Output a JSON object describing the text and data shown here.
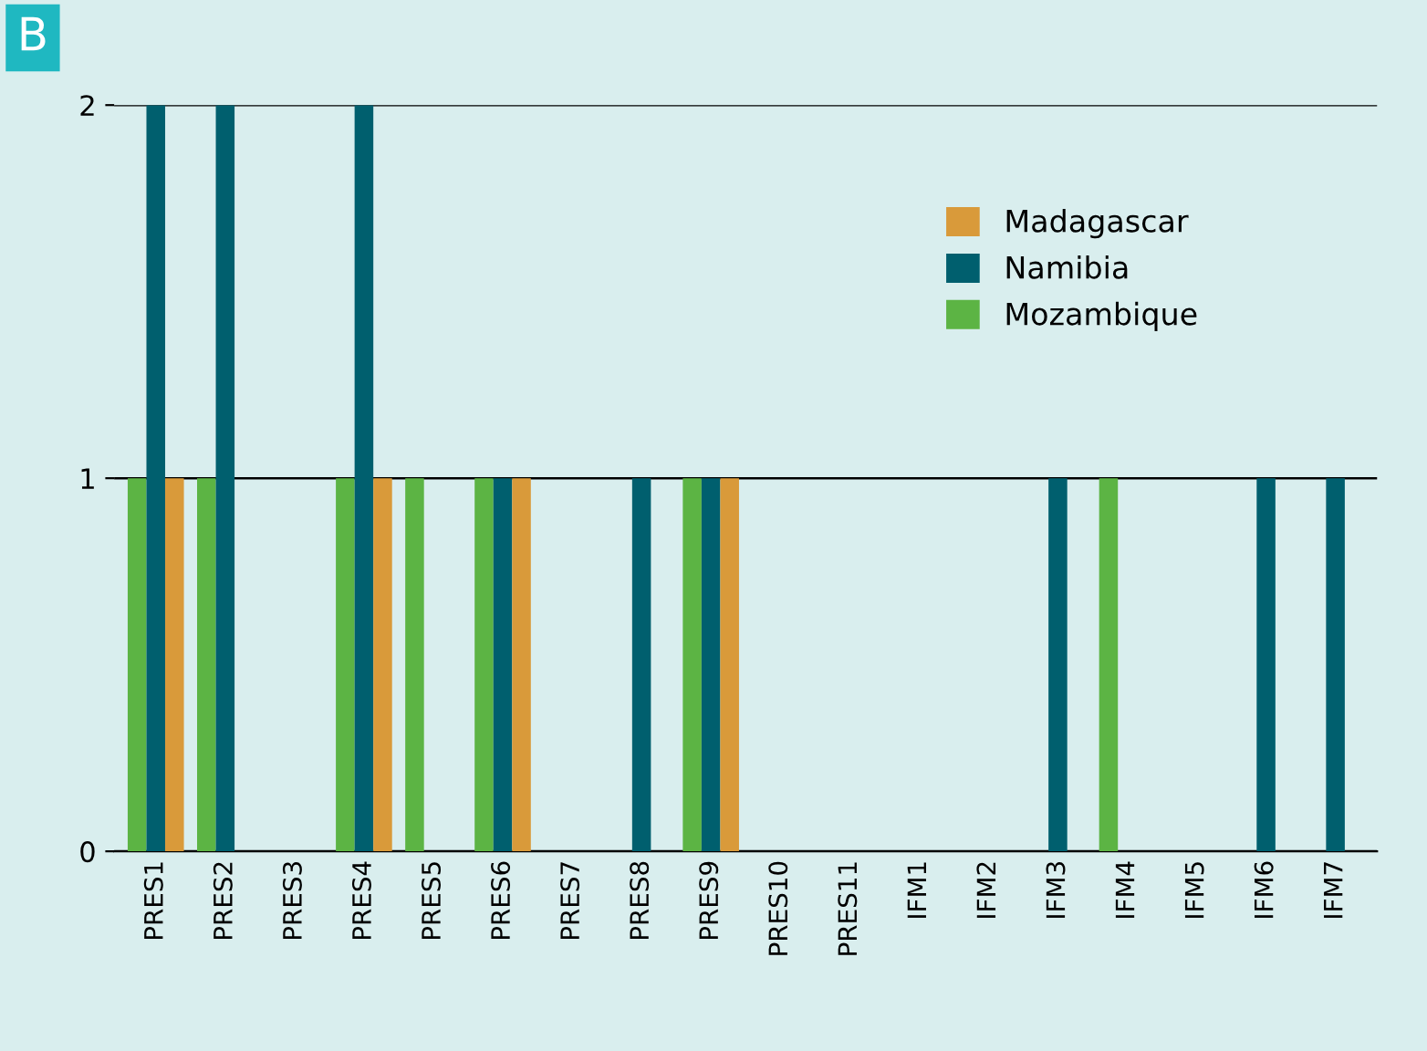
{
  "chart_data": {
    "type": "bar",
    "annotations": [
      "B"
    ],
    "categories": [
      "PRES1",
      "PRES2",
      "PRES3",
      "PRES4",
      "PRES5",
      "PRES6",
      "PRES7",
      "PRES8",
      "PRES9",
      "PRES10",
      "PRES11",
      "IFM1",
      "IFM2",
      "IFM3",
      "IFM4",
      "IFM5",
      "IFM6",
      "IFM7"
    ],
    "series": [
      {
        "name": "Mozambique",
        "color": "#5cb444",
        "values": [
          1,
          1,
          0,
          1,
          1,
          1,
          0,
          0,
          1,
          0,
          0,
          0,
          0,
          0,
          1,
          0,
          0,
          0
        ]
      },
      {
        "name": "Namibia",
        "color": "#005f6e",
        "values": [
          2,
          2,
          0,
          2,
          0,
          1,
          0,
          1,
          1,
          0,
          0,
          0,
          0,
          1,
          0,
          0,
          1,
          1
        ]
      },
      {
        "name": "Madagascar",
        "color": "#d99a3a",
        "values": [
          1,
          0,
          0,
          1,
          0,
          1,
          0,
          0,
          1,
          0,
          0,
          0,
          0,
          0,
          0,
          0,
          0,
          0
        ]
      }
    ],
    "ylim": [
      0,
      2
    ],
    "yticks": [
      0,
      1,
      2
    ],
    "grid": "y",
    "legend": "top right"
  }
}
